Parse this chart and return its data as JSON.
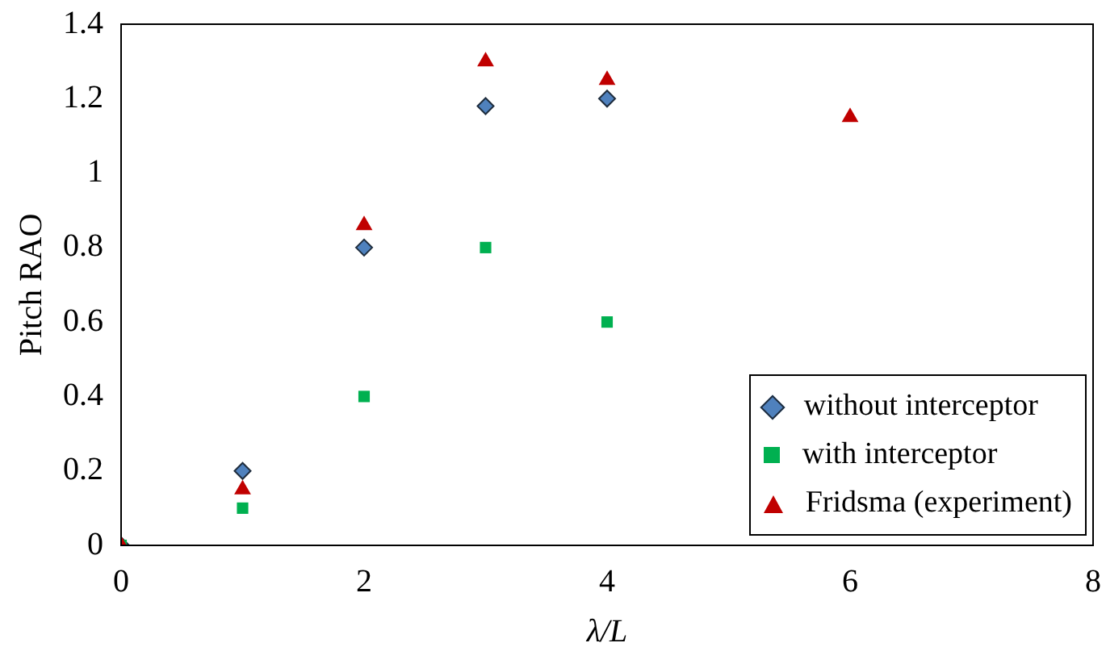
{
  "chart_data": {
    "type": "scatter",
    "xlabel": "λ/L",
    "ylabel": "Pitch RAO",
    "xlim": [
      0,
      8
    ],
    "xticks": [
      0,
      2,
      4,
      6,
      8
    ],
    "ylim": [
      0,
      1.4
    ],
    "yticks": [
      0,
      0.2,
      0.4,
      0.6,
      0.8,
      1,
      1.2,
      1.4
    ],
    "grid": false,
    "legend": "bottom right",
    "series": [
      {
        "name": "Fridsma (experiment)",
        "color": "#c00000",
        "marker": "triangle",
        "x": [
          0,
          1,
          2,
          3,
          4,
          6
        ],
        "values": [
          0,
          0.15,
          0.86,
          1.3,
          1.25,
          1.15
        ]
      },
      {
        "name": "with interceptor",
        "color": "#00b050",
        "marker": "square",
        "x": [
          0,
          1,
          2,
          3,
          4
        ],
        "values": [
          0,
          0.1,
          0.4,
          0.8,
          0.6
        ]
      },
      {
        "name": "without interceptor",
        "color": "#4f81bd",
        "marker": "diamond",
        "x": [
          0,
          1,
          2,
          3,
          4
        ],
        "values": [
          0,
          0.2,
          0.8,
          1.18,
          1.2
        ]
      }
    ]
  }
}
